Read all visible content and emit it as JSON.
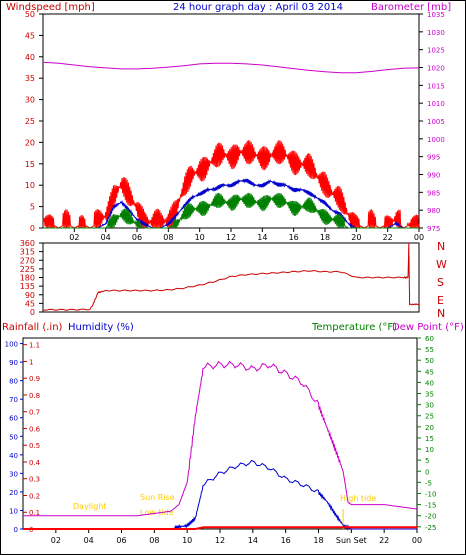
{
  "chart_data": [
    {
      "type": "line",
      "title": "24 hour graph day : April 03 2014",
      "ylabel_left": "Windspeed [mph]",
      "ylabel_right": "Barometer [mb]",
      "x_ticks": [
        "02",
        "04",
        "06",
        "08",
        "10",
        "12",
        "14",
        "16",
        "18",
        "20",
        "22",
        "00"
      ],
      "y_left_ticks": [
        "0",
        "5",
        "10",
        "15",
        "20",
        "25",
        "30",
        "35",
        "40",
        "45",
        "50"
      ],
      "y_right_ticks": [
        "975",
        "980",
        "985",
        "990",
        "995",
        "1000",
        "1005",
        "1010",
        "1015",
        "1020",
        "1025",
        "1030",
        "1035"
      ],
      "ylim_left": [
        0,
        50
      ],
      "ylim_right": [
        975,
        1035
      ],
      "colors": {
        "gust": "#ff0000",
        "average": "#0000cc",
        "minimum": "#008000",
        "barometer": "#cc00cc"
      },
      "series": [
        {
          "key": "gust",
          "x": [
            0,
            0.5,
            1,
            1.5,
            2,
            2.5,
            3,
            3.5,
            4,
            4.5,
            5,
            5.5,
            6,
            6.5,
            7,
            7.5,
            8,
            8.5,
            9,
            9.5,
            10,
            10.5,
            11,
            11.5,
            12,
            12.5,
            13,
            13.5,
            14,
            14.5,
            15,
            15.5,
            16,
            16.5,
            17,
            17.5,
            18,
            18.5,
            19,
            19.5,
            20,
            20.5,
            21,
            21.5,
            22,
            22.5,
            23,
            23.5,
            24
          ],
          "values": [
            2,
            1,
            0,
            1,
            0,
            1,
            0,
            1,
            3,
            8,
            10,
            7,
            5,
            2,
            1,
            1,
            2,
            5,
            9,
            12,
            14,
            15,
            16,
            17,
            17,
            18,
            17,
            17,
            17,
            17,
            17,
            17,
            16,
            15,
            14,
            12,
            11,
            8,
            6,
            3,
            1,
            0,
            1,
            0,
            1,
            2,
            0,
            1,
            1
          ]
        },
        {
          "key": "average",
          "x": [
            0,
            0.5,
            1,
            1.5,
            2,
            2.5,
            3,
            3.5,
            4,
            4.5,
            5,
            5.5,
            6,
            6.5,
            7,
            7.5,
            8,
            8.5,
            9,
            9.5,
            10,
            10.5,
            11,
            11.5,
            12,
            12.5,
            13,
            13.5,
            14,
            14.5,
            15,
            15.5,
            16,
            16.5,
            17,
            17.5,
            18,
            18.5,
            19,
            19.5,
            20,
            20.5,
            21,
            21.5,
            22,
            22.5,
            23,
            23.5,
            24
          ],
          "values": [
            0,
            0,
            0,
            0,
            0,
            0,
            0,
            0,
            1,
            5,
            6,
            4,
            2,
            1,
            0,
            0,
            1,
            3,
            5,
            7,
            8,
            9,
            9,
            10,
            10,
            11,
            11,
            10,
            10,
            11,
            10,
            10,
            9,
            9,
            8,
            7,
            6,
            4,
            3,
            1,
            0,
            0,
            0,
            0,
            0,
            1,
            0,
            0,
            0
          ]
        },
        {
          "key": "minimum",
          "x": [
            0,
            0.5,
            1,
            1.5,
            2,
            2.5,
            3,
            3.5,
            4,
            4.5,
            5,
            5.5,
            6,
            6.5,
            7,
            7.5,
            8,
            8.5,
            9,
            9.5,
            10,
            10.5,
            11,
            11.5,
            12,
            12.5,
            13,
            13.5,
            14,
            14.5,
            15,
            15.5,
            16,
            16.5,
            17,
            17.5,
            18,
            18.5,
            19,
            19.5,
            20,
            20.5,
            21,
            21.5,
            22,
            22.5,
            23,
            23.5,
            24
          ],
          "values": [
            0,
            0,
            0,
            0,
            0,
            0,
            0,
            0,
            0,
            2,
            3,
            2,
            1,
            0,
            0,
            0,
            0,
            1,
            3,
            4,
            5,
            5,
            6,
            6,
            6,
            7,
            6,
            6,
            6,
            7,
            6,
            6,
            5,
            5,
            5,
            4,
            3,
            2,
            1,
            0,
            0,
            0,
            0,
            0,
            0,
            0,
            0,
            0,
            0
          ]
        },
        {
          "key": "barometer",
          "x": [
            0,
            1,
            2,
            3,
            4,
            5,
            6,
            7,
            8,
            9,
            10,
            11,
            12,
            13,
            14,
            15,
            16,
            17,
            18,
            19,
            20,
            21,
            22,
            23,
            24
          ],
          "values": [
            1021.5,
            1021.2,
            1020.7,
            1020.2,
            1019.9,
            1019.6,
            1019.6,
            1019.8,
            1020.1,
            1020.5,
            1021.0,
            1021.2,
            1021.2,
            1021.0,
            1020.7,
            1020.2,
            1019.7,
            1019.2,
            1018.8,
            1018.5,
            1018.5,
            1018.9,
            1019.4,
            1019.8,
            1019.9
          ]
        }
      ]
    },
    {
      "type": "line",
      "ylabel_right": [
        "N",
        "W",
        "S",
        "E",
        "N"
      ],
      "x_ticks": [],
      "y_ticks": [
        "0",
        "45",
        "90",
        "135",
        "180",
        "225",
        "270",
        "315",
        "360"
      ],
      "ylim": [
        0,
        360
      ],
      "colors": {
        "direction": "#cc0000"
      },
      "series": [
        {
          "key": "direction",
          "x": [
            0,
            1,
            2,
            3,
            3.2,
            3.5,
            4,
            5,
            6,
            7,
            8,
            9,
            10,
            11,
            12,
            13,
            14,
            15,
            16,
            17,
            18,
            19,
            20,
            21,
            22,
            23,
            23.3,
            23.35,
            23.4,
            24
          ],
          "values": [
            12,
            12,
            12,
            14,
            40,
            100,
            112,
            112,
            112,
            112,
            115,
            125,
            140,
            160,
            185,
            195,
            200,
            205,
            210,
            215,
            210,
            210,
            180,
            180,
            180,
            180,
            180,
            360,
            40,
            40
          ]
        }
      ]
    },
    {
      "type": "line",
      "ylabel_left": "Rainfall (.in)",
      "ylabel_left2": "Humidity (%)",
      "ylabel_right": "Temperature (°F)",
      "ylabel_right2": "Dew Point (°F)",
      "x_ticks": [
        "02",
        "04",
        "06",
        "08",
        "10",
        "12",
        "14",
        "16",
        "18",
        "Sun Set",
        "22",
        "00"
      ],
      "y_rain_ticks": [
        "0",
        "0.1",
        "0.2",
        "0.3",
        "0.4",
        "0.5",
        "0.6",
        "0.7",
        "0.8",
        "0.9",
        "1",
        "1.1"
      ],
      "y_humidity_ticks": [
        "0",
        "10",
        "20",
        "30",
        "40",
        "50",
        "60",
        "70",
        "80",
        "90",
        "100"
      ],
      "y_temp_ticks": [
        "-25",
        "-20",
        "-15",
        "-10",
        "-5",
        "0",
        "5",
        "10",
        "15",
        "20",
        "25",
        "30",
        "35",
        "40",
        "45",
        "50",
        "55",
        "60"
      ],
      "ylim_rain": [
        0,
        1.14
      ],
      "ylim_humidity": [
        0,
        103
      ],
      "ylim_temp": [
        -26,
        60
      ],
      "annotations": [
        {
          "label": "Daylight",
          "hour": 3.3
        },
        {
          "label": "Sun Rise",
          "hour": 7
        },
        {
          "label": "Low tide",
          "hour": 7
        },
        {
          "label": "Sun Set",
          "hour": 19.5
        },
        {
          "label": "High tide",
          "hour": 20.6
        }
      ],
      "colors": {
        "temperature": "#cc00cc",
        "humidity": "#0000cc",
        "rainfall": "#ff0000"
      },
      "series": [
        {
          "key": "temperature",
          "x": [
            0,
            1,
            2,
            3,
            4,
            5,
            6,
            7,
            8,
            9,
            9.5,
            10,
            10.5,
            11,
            12,
            13,
            14,
            15,
            16,
            17,
            18,
            18.5,
            19,
            19.5,
            19.8,
            20,
            21,
            22,
            23,
            24
          ],
          "values": [
            -20,
            -20,
            -20,
            -20,
            -20,
            -20,
            -20,
            -20,
            -19,
            -18,
            -15,
            -5,
            25,
            47,
            48,
            48,
            46,
            48,
            44,
            40,
            30,
            20,
            10,
            0,
            -14,
            -15,
            -15,
            -15,
            -16,
            -17
          ]
        },
        {
          "key": "humidity",
          "x": [
            0,
            1,
            2,
            3,
            4,
            5,
            6,
            7,
            8,
            9,
            9.5,
            10,
            10.5,
            11,
            12,
            13,
            14,
            15,
            16,
            17,
            18,
            18.5,
            19,
            19.5,
            20,
            21,
            22,
            23,
            24
          ],
          "values": [
            0,
            0,
            0,
            0,
            0,
            0,
            0,
            0,
            0,
            0,
            1,
            2,
            6,
            24,
            30,
            34,
            36,
            33,
            27,
            24,
            20,
            15,
            8,
            2,
            0,
            0,
            0,
            0,
            0
          ]
        },
        {
          "key": "rainfall",
          "x": [
            0,
            10.5,
            11,
            24
          ],
          "values": [
            0,
            0,
            0.01,
            0.01
          ]
        }
      ]
    }
  ]
}
